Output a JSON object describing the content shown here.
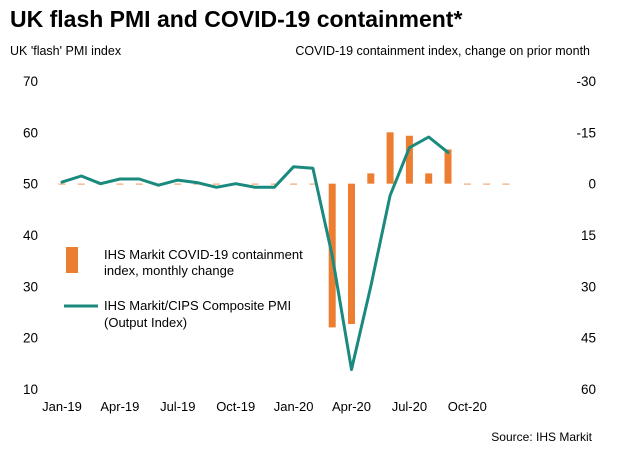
{
  "title": "UK flash PMI and COVID-19 containment*",
  "left_axis_unit": "UK 'flash' PMI index",
  "right_axis_unit": "COVID-19 containment index, change on prior month",
  "source": "Source: IHS Markit",
  "colors": {
    "bar": "#ed7d31",
    "line": "#1a8a7e"
  },
  "chart_data": {
    "type": "bar+line",
    "x_tick_labels": [
      "Jan-19",
      "Apr-19",
      "Jul-19",
      "Oct-19",
      "Jan-20",
      "Apr-20",
      "Jul-20",
      "Oct-20"
    ],
    "months": [
      "Jan-19",
      "Feb-19",
      "Mar-19",
      "Apr-19",
      "May-19",
      "Jun-19",
      "Jul-19",
      "Aug-19",
      "Sep-19",
      "Oct-19",
      "Nov-19",
      "Dec-19",
      "Jan-20",
      "Feb-20",
      "Mar-20",
      "Apr-20",
      "May-20",
      "Jun-20",
      "Jul-20",
      "Aug-20",
      "Sep-20",
      "Oct-20",
      "Nov-20",
      "Dec-20"
    ],
    "y_left": {
      "ticks": [
        "70",
        "60",
        "50",
        "40",
        "30",
        "20",
        "10"
      ],
      "ylim": [
        10,
        70
      ]
    },
    "y_right": {
      "ticks": [
        "-30",
        "-15",
        "0",
        "15",
        "30",
        "45",
        "60"
      ],
      "ylim": [
        60,
        -30
      ],
      "inverted": true
    },
    "series": [
      {
        "name": "IHS Markit COVID-19 containment index, monthly change",
        "legend_lines": [
          "IHS Markit COVID-19 containment",
          "index, monthly change"
        ],
        "type": "bar",
        "axis": "right",
        "values": [
          0,
          0,
          0,
          0,
          0,
          0,
          0,
          0,
          0,
          0,
          0,
          0,
          0,
          0,
          42,
          41,
          -3,
          -15,
          -14,
          -3,
          -10,
          0,
          0,
          0
        ]
      },
      {
        "name": "IHS Markit/CIPS Composite PMI (Output Index)",
        "legend_lines": [
          "IHS Markit/CIPS Composite PMI",
          "(Output Index)"
        ],
        "type": "line",
        "axis": "left",
        "values": [
          50.3,
          51.5,
          50.0,
          50.9,
          50.9,
          49.7,
          50.7,
          50.2,
          49.3,
          50.0,
          49.3,
          49.3,
          53.3,
          53.0,
          36.0,
          13.8,
          30.0,
          47.7,
          57.0,
          59.1,
          56.1,
          null,
          null,
          null
        ]
      }
    ],
    "grid": false,
    "legend_position": "left-middle"
  }
}
